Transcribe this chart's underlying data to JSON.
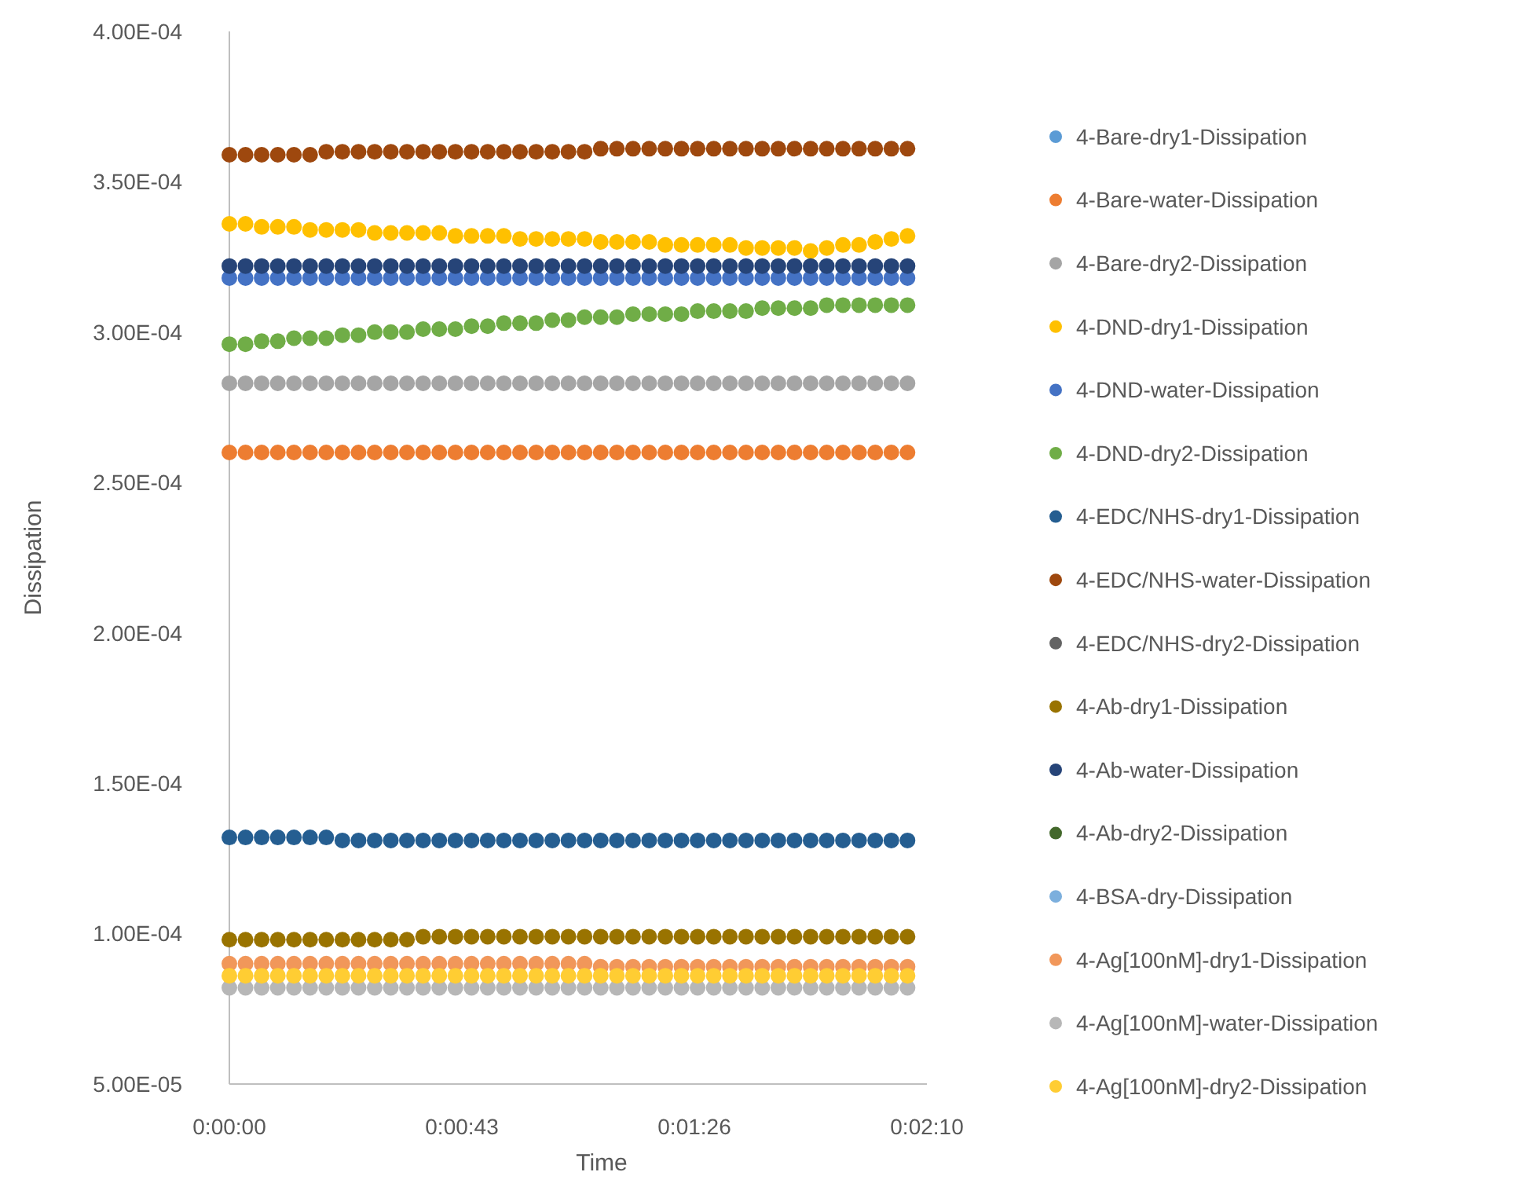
{
  "chart_data": {
    "type": "scatter",
    "xlabel": "Time",
    "ylabel": "Dissipation",
    "marker": "circle",
    "legend": "right",
    "xlim": [
      0,
      129.6
    ],
    "xticks": [
      {
        "value": 0,
        "label": "0:00:00"
      },
      {
        "value": 43.2,
        "label": "0:00:43"
      },
      {
        "value": 86.4,
        "label": "0:01:26"
      },
      {
        "value": 129.6,
        "label": "0:02:10"
      }
    ],
    "ylim": [
      5e-05,
      0.0004
    ],
    "yticks": [
      {
        "value": 5e-05,
        "label": "5.00E-05"
      },
      {
        "value": 0.0001,
        "label": "1.00E-04"
      },
      {
        "value": 0.00015,
        "label": "1.50E-04"
      },
      {
        "value": 0.0002,
        "label": "2.00E-04"
      },
      {
        "value": 0.00025,
        "label": "2.50E-04"
      },
      {
        "value": 0.0003,
        "label": "3.00E-04"
      },
      {
        "value": 0.00035,
        "label": "3.50E-04"
      },
      {
        "value": 0.0004,
        "label": "4.00E-04"
      }
    ],
    "x": [
      0,
      3,
      6,
      9,
      12,
      15,
      18,
      21,
      24,
      27,
      30,
      33,
      36,
      39,
      42,
      45,
      48,
      51,
      54,
      57,
      60,
      63,
      66,
      69,
      72,
      75,
      78,
      81,
      84,
      87,
      90,
      93,
      96,
      99,
      102,
      105,
      108,
      111,
      114,
      117,
      120,
      123,
      126
    ],
    "series": [
      {
        "name": "4-Bare-dry1-Dissipation",
        "color": "#5b9bd5",
        "values": [
          null,
          null,
          null,
          null,
          null,
          null,
          null,
          null,
          null,
          null,
          null,
          null,
          null,
          null,
          null,
          null,
          null,
          null,
          null,
          null,
          null,
          null,
          null,
          null,
          null,
          null,
          null,
          null,
          null,
          null,
          null,
          null,
          null,
          null,
          null,
          null,
          null,
          null,
          null,
          null,
          null,
          null,
          null
        ]
      },
      {
        "name": "4-Bare-water-Dissipation",
        "color": "#ed7d31",
        "values": [
          0.00026,
          0.00026,
          0.00026,
          0.00026,
          0.00026,
          0.00026,
          0.00026,
          0.00026,
          0.00026,
          0.00026,
          0.00026,
          0.00026,
          0.00026,
          0.00026,
          0.00026,
          0.00026,
          0.00026,
          0.00026,
          0.00026,
          0.00026,
          0.00026,
          0.00026,
          0.00026,
          0.00026,
          0.00026,
          0.00026,
          0.00026,
          0.00026,
          0.00026,
          0.00026,
          0.00026,
          0.00026,
          0.00026,
          0.00026,
          0.00026,
          0.00026,
          0.00026,
          0.00026,
          0.00026,
          0.00026,
          0.00026,
          0.00026,
          0.00026
        ]
      },
      {
        "name": "4-Bare-dry2-Dissipation",
        "color": "#a5a5a5",
        "values": [
          0.000283,
          0.000283,
          0.000283,
          0.000283,
          0.000283,
          0.000283,
          0.000283,
          0.000283,
          0.000283,
          0.000283,
          0.000283,
          0.000283,
          0.000283,
          0.000283,
          0.000283,
          0.000283,
          0.000283,
          0.000283,
          0.000283,
          0.000283,
          0.000283,
          0.000283,
          0.000283,
          0.000283,
          0.000283,
          0.000283,
          0.000283,
          0.000283,
          0.000283,
          0.000283,
          0.000283,
          0.000283,
          0.000283,
          0.000283,
          0.000283,
          0.000283,
          0.000283,
          0.000283,
          0.000283,
          0.000283,
          0.000283,
          0.000283,
          0.000283
        ]
      },
      {
        "name": "4-DND-dry1-Dissipation",
        "color": "#ffc000",
        "values": [
          0.000336,
          0.000336,
          0.000335,
          0.000335,
          0.000335,
          0.000334,
          0.000334,
          0.000334,
          0.000334,
          0.000333,
          0.000333,
          0.000333,
          0.000333,
          0.000333,
          0.000332,
          0.000332,
          0.000332,
          0.000332,
          0.000331,
          0.000331,
          0.000331,
          0.000331,
          0.000331,
          0.00033,
          0.00033,
          0.00033,
          0.00033,
          0.000329,
          0.000329,
          0.000329,
          0.000329,
          0.000329,
          0.000328,
          0.000328,
          0.000328,
          0.000328,
          0.000327,
          0.000328,
          0.000329,
          0.000329,
          0.00033,
          0.000331,
          0.000332
        ]
      },
      {
        "name": "4-DND-water-Dissipation",
        "color": "#4472c4",
        "values": [
          0.000318,
          0.000318,
          0.000318,
          0.000318,
          0.000318,
          0.000318,
          0.000318,
          0.000318,
          0.000318,
          0.000318,
          0.000318,
          0.000318,
          0.000318,
          0.000318,
          0.000318,
          0.000318,
          0.000318,
          0.000318,
          0.000318,
          0.000318,
          0.000318,
          0.000318,
          0.000318,
          0.000318,
          0.000318,
          0.000318,
          0.000318,
          0.000318,
          0.000318,
          0.000318,
          0.000318,
          0.000318,
          0.000318,
          0.000318,
          0.000318,
          0.000318,
          0.000318,
          0.000318,
          0.000318,
          0.000318,
          0.000318,
          0.000318,
          0.000318
        ]
      },
      {
        "name": "4-DND-dry2-Dissipation",
        "color": "#70ad47",
        "values": [
          0.000296,
          0.000296,
          0.000297,
          0.000297,
          0.000298,
          0.000298,
          0.000298,
          0.000299,
          0.000299,
          0.0003,
          0.0003,
          0.0003,
          0.000301,
          0.000301,
          0.000301,
          0.000302,
          0.000302,
          0.000303,
          0.000303,
          0.000303,
          0.000304,
          0.000304,
          0.000305,
          0.000305,
          0.000305,
          0.000306,
          0.000306,
          0.000306,
          0.000306,
          0.000307,
          0.000307,
          0.000307,
          0.000307,
          0.000308,
          0.000308,
          0.000308,
          0.000308,
          0.000309,
          0.000309,
          0.000309,
          0.000309,
          0.000309,
          0.000309
        ]
      },
      {
        "name": "4-EDC/NHS-dry1-Dissipation",
        "color": "#255e91",
        "values": [
          0.000132,
          0.000132,
          0.000132,
          0.000132,
          0.000132,
          0.000132,
          0.000132,
          0.000131,
          0.000131,
          0.000131,
          0.000131,
          0.000131,
          0.000131,
          0.000131,
          0.000131,
          0.000131,
          0.000131,
          0.000131,
          0.000131,
          0.000131,
          0.000131,
          0.000131,
          0.000131,
          0.000131,
          0.000131,
          0.000131,
          0.000131,
          0.000131,
          0.000131,
          0.000131,
          0.000131,
          0.000131,
          0.000131,
          0.000131,
          0.000131,
          0.000131,
          0.000131,
          0.000131,
          0.000131,
          0.000131,
          0.000131,
          0.000131,
          0.000131
        ]
      },
      {
        "name": "4-EDC/NHS-water-Dissipation",
        "color": "#9e480e",
        "values": [
          0.000359,
          0.000359,
          0.000359,
          0.000359,
          0.000359,
          0.000359,
          0.00036,
          0.00036,
          0.00036,
          0.00036,
          0.00036,
          0.00036,
          0.00036,
          0.00036,
          0.00036,
          0.00036,
          0.00036,
          0.00036,
          0.00036,
          0.00036,
          0.00036,
          0.00036,
          0.00036,
          0.000361,
          0.000361,
          0.000361,
          0.000361,
          0.000361,
          0.000361,
          0.000361,
          0.000361,
          0.000361,
          0.000361,
          0.000361,
          0.000361,
          0.000361,
          0.000361,
          0.000361,
          0.000361,
          0.000361,
          0.000361,
          0.000361,
          0.000361
        ]
      },
      {
        "name": "4-EDC/NHS-dry2-Dissipation",
        "color": "#636363",
        "values": [
          null,
          null,
          null,
          null,
          null,
          null,
          null,
          null,
          null,
          null,
          null,
          null,
          null,
          null,
          null,
          null,
          null,
          null,
          null,
          null,
          null,
          null,
          null,
          null,
          null,
          null,
          null,
          null,
          null,
          null,
          null,
          null,
          null,
          null,
          null,
          null,
          null,
          null,
          null,
          null,
          null,
          null,
          null
        ]
      },
      {
        "name": "4-Ab-dry1-Dissipation",
        "color": "#997300",
        "values": [
          9.8e-05,
          9.8e-05,
          9.8e-05,
          9.8e-05,
          9.8e-05,
          9.8e-05,
          9.8e-05,
          9.8e-05,
          9.8e-05,
          9.8e-05,
          9.8e-05,
          9.8e-05,
          9.9e-05,
          9.9e-05,
          9.9e-05,
          9.9e-05,
          9.9e-05,
          9.9e-05,
          9.9e-05,
          9.9e-05,
          9.9e-05,
          9.9e-05,
          9.9e-05,
          9.9e-05,
          9.9e-05,
          9.9e-05,
          9.9e-05,
          9.9e-05,
          9.9e-05,
          9.9e-05,
          9.9e-05,
          9.9e-05,
          9.9e-05,
          9.9e-05,
          9.9e-05,
          9.9e-05,
          9.9e-05,
          9.9e-05,
          9.9e-05,
          9.9e-05,
          9.9e-05,
          9.9e-05,
          9.9e-05
        ]
      },
      {
        "name": "4-Ab-water-Dissipation",
        "color": "#264478",
        "values": [
          0.000322,
          0.000322,
          0.000322,
          0.000322,
          0.000322,
          0.000322,
          0.000322,
          0.000322,
          0.000322,
          0.000322,
          0.000322,
          0.000322,
          0.000322,
          0.000322,
          0.000322,
          0.000322,
          0.000322,
          0.000322,
          0.000322,
          0.000322,
          0.000322,
          0.000322,
          0.000322,
          0.000322,
          0.000322,
          0.000322,
          0.000322,
          0.000322,
          0.000322,
          0.000322,
          0.000322,
          0.000322,
          0.000322,
          0.000322,
          0.000322,
          0.000322,
          0.000322,
          0.000322,
          0.000322,
          0.000322,
          0.000322,
          0.000322,
          0.000322
        ]
      },
      {
        "name": "4-Ab-dry2-Dissipation",
        "color": "#43682b",
        "values": [
          null,
          null,
          null,
          null,
          null,
          null,
          null,
          null,
          null,
          null,
          null,
          null,
          null,
          null,
          null,
          null,
          null,
          null,
          null,
          null,
          null,
          null,
          null,
          null,
          null,
          null,
          null,
          null,
          null,
          null,
          null,
          null,
          null,
          null,
          null,
          null,
          null,
          null,
          null,
          null,
          null,
          null,
          null
        ]
      },
      {
        "name": "4-BSA-dry-Dissipation",
        "color": "#7cafdd",
        "values": [
          null,
          null,
          null,
          null,
          null,
          null,
          null,
          null,
          null,
          null,
          null,
          null,
          null,
          null,
          null,
          null,
          null,
          null,
          null,
          null,
          null,
          null,
          null,
          null,
          null,
          null,
          null,
          null,
          null,
          null,
          null,
          null,
          null,
          null,
          null,
          null,
          null,
          null,
          null,
          null,
          null,
          null,
          null
        ]
      },
      {
        "name": "4-Ag[100nM]-dry1-Dissipation",
        "color": "#f1975a",
        "values": [
          9e-05,
          9e-05,
          9e-05,
          9e-05,
          9e-05,
          9e-05,
          9e-05,
          9e-05,
          9e-05,
          9e-05,
          9e-05,
          9e-05,
          9e-05,
          9e-05,
          9e-05,
          9e-05,
          9e-05,
          9e-05,
          9e-05,
          9e-05,
          9e-05,
          9e-05,
          9e-05,
          8.9e-05,
          8.9e-05,
          8.9e-05,
          8.9e-05,
          8.9e-05,
          8.9e-05,
          8.9e-05,
          8.9e-05,
          8.9e-05,
          8.9e-05,
          8.9e-05,
          8.9e-05,
          8.9e-05,
          8.9e-05,
          8.9e-05,
          8.9e-05,
          8.9e-05,
          8.9e-05,
          8.9e-05,
          8.9e-05
        ]
      },
      {
        "name": "4-Ag[100nM]-water-Dissipation",
        "color": "#b7b7b7",
        "values": [
          8.2e-05,
          8.2e-05,
          8.2e-05,
          8.2e-05,
          8.2e-05,
          8.2e-05,
          8.2e-05,
          8.2e-05,
          8.2e-05,
          8.2e-05,
          8.2e-05,
          8.2e-05,
          8.2e-05,
          8.2e-05,
          8.2e-05,
          8.2e-05,
          8.2e-05,
          8.2e-05,
          8.2e-05,
          8.2e-05,
          8.2e-05,
          8.2e-05,
          8.2e-05,
          8.2e-05,
          8.2e-05,
          8.2e-05,
          8.2e-05,
          8.2e-05,
          8.2e-05,
          8.2e-05,
          8.2e-05,
          8.2e-05,
          8.2e-05,
          8.2e-05,
          8.2e-05,
          8.2e-05,
          8.2e-05,
          8.2e-05,
          8.2e-05,
          8.2e-05,
          8.2e-05,
          8.2e-05,
          8.2e-05
        ]
      },
      {
        "name": "4-Ag[100nM]-dry2-Dissipation",
        "color": "#ffcd33",
        "values": [
          8.6e-05,
          8.6e-05,
          8.6e-05,
          8.6e-05,
          8.6e-05,
          8.6e-05,
          8.6e-05,
          8.6e-05,
          8.6e-05,
          8.6e-05,
          8.6e-05,
          8.6e-05,
          8.6e-05,
          8.6e-05,
          8.6e-05,
          8.6e-05,
          8.6e-05,
          8.6e-05,
          8.6e-05,
          8.6e-05,
          8.6e-05,
          8.6e-05,
          8.6e-05,
          8.6e-05,
          8.6e-05,
          8.6e-05,
          8.6e-05,
          8.6e-05,
          8.6e-05,
          8.6e-05,
          8.6e-05,
          8.6e-05,
          8.6e-05,
          8.6e-05,
          8.6e-05,
          8.6e-05,
          8.6e-05,
          8.6e-05,
          8.6e-05,
          8.6e-05,
          8.6e-05,
          8.6e-05,
          8.6e-05
        ]
      }
    ]
  }
}
